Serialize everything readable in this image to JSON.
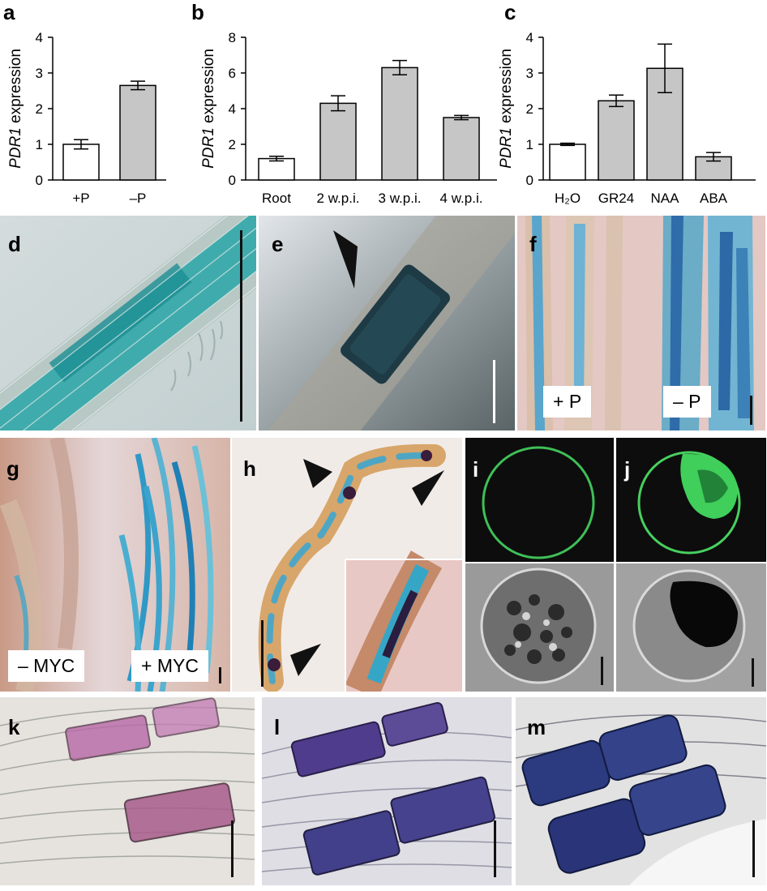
{
  "panel_labels": {
    "a": "a",
    "b": "b",
    "c": "c",
    "d": "d",
    "e": "e",
    "f": "f",
    "g": "g",
    "h": "h",
    "i": "i",
    "j": "j",
    "k": "k",
    "l": "l",
    "m": "m"
  },
  "chart_data": [
    {
      "panel": "a",
      "type": "bar",
      "ylabel_italic": "PDR1",
      "ylabel_rest": " expression",
      "categories": [
        "+P",
        "–P"
      ],
      "values": [
        1.0,
        2.65
      ],
      "errors": [
        0.13,
        0.12
      ],
      "ylim": [
        0,
        4
      ],
      "yticks": [
        "0",
        "1",
        "2",
        "3",
        "4"
      ],
      "bar_colors": [
        "#ffffff",
        "#c6c6c6"
      ]
    },
    {
      "panel": "b",
      "type": "bar",
      "ylabel_italic": "PDR1",
      "ylabel_rest": " expression",
      "categories": [
        "Root",
        "2 w.p.i.",
        "3 w.p.i.",
        "4 w.p.i."
      ],
      "values": [
        1.2,
        4.3,
        6.3,
        3.5
      ],
      "errors": [
        0.13,
        0.42,
        0.4,
        0.12
      ],
      "ylim": [
        0,
        8
      ],
      "yticks": [
        "0",
        "2",
        "4",
        "6",
        "8"
      ],
      "bar_colors": [
        "#ffffff",
        "#c6c6c6",
        "#c6c6c6",
        "#c6c6c6"
      ]
    },
    {
      "panel": "c",
      "type": "bar",
      "ylabel_italic": "PDR1",
      "ylabel_rest": " expression",
      "categories": [
        "H₂O",
        "GR24",
        "NAA",
        "ABA"
      ],
      "values": [
        1.0,
        2.22,
        3.13,
        0.65
      ],
      "errors": [
        0.03,
        0.16,
        0.68,
        0.12
      ],
      "ylim": [
        0,
        4
      ],
      "yticks": [
        "0",
        "1",
        "2",
        "3",
        "4"
      ],
      "bar_colors": [
        "#ffffff",
        "#c6c6c6",
        "#c6c6c6",
        "#c6c6c6"
      ]
    }
  ],
  "tags": {
    "plus_p": "+ P",
    "minus_p": "– P",
    "minus_myc": "– MYC",
    "plus_myc": "+ MYC"
  }
}
